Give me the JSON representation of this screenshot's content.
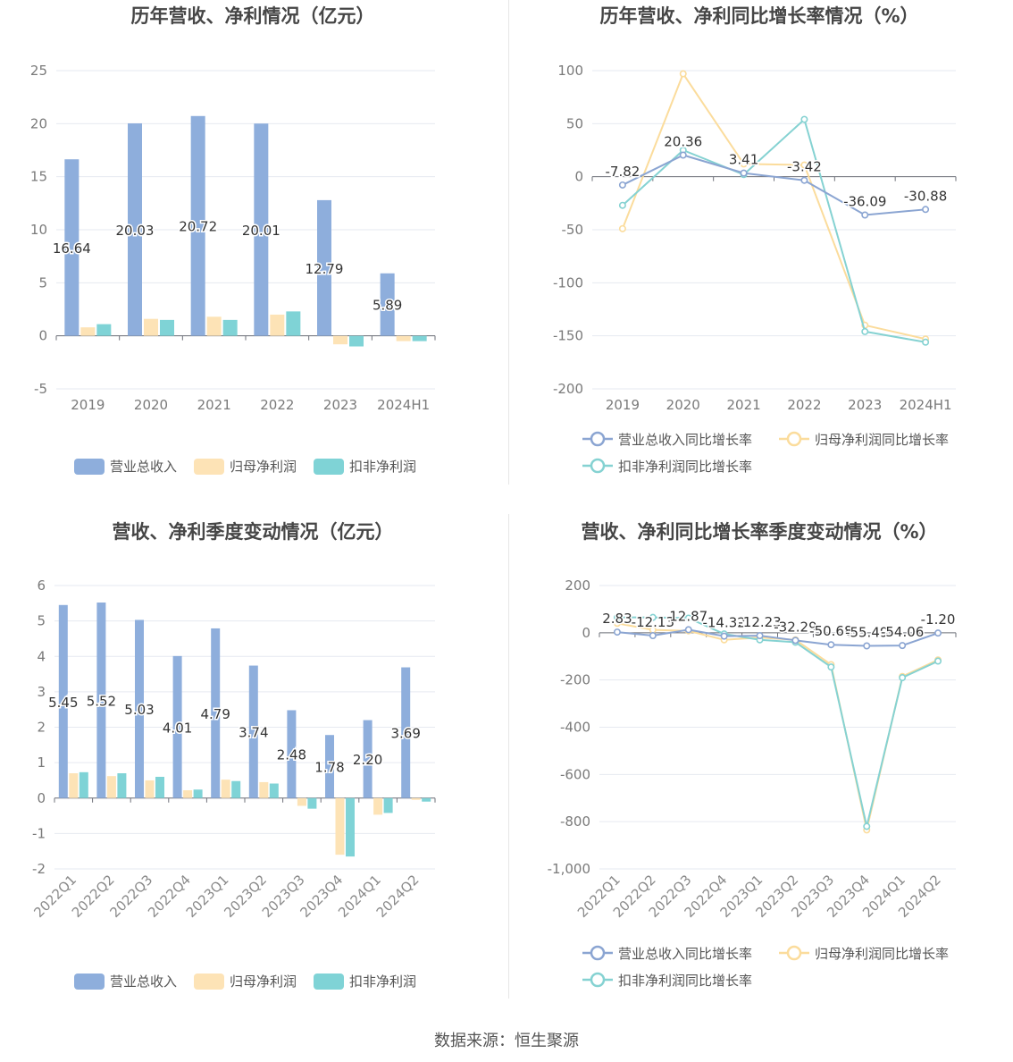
{
  "source_label": "数据来源：恒生聚源",
  "colors": {
    "revenue_bar": "#8eaedc",
    "net_profit_bar": "#fde3b6",
    "deducted_profit_bar": "#7fd3d6",
    "revenue_line": "#8ba5d2",
    "net_profit_line": "#fbdc9c",
    "deducted_profit_line": "#85d2d2"
  },
  "chart_data": [
    {
      "type": "bar",
      "title": "历年营收、净利情况（亿元）",
      "categories": [
        "2019",
        "2020",
        "2021",
        "2022",
        "2023",
        "2024H1"
      ],
      "ylim": [
        -5,
        25
      ],
      "yticks": [
        -5,
        0,
        5,
        10,
        15,
        20,
        25
      ],
      "series": [
        {
          "name": "营业总收入",
          "values": [
            16.64,
            20.03,
            20.72,
            20.01,
            12.79,
            5.89
          ],
          "labels": [
            "16.64",
            "20.03",
            "20.72",
            "20.01",
            "12.79",
            "5.89"
          ]
        },
        {
          "name": "归母净利润",
          "values": [
            0.8,
            1.6,
            1.8,
            2.0,
            -0.8,
            -0.5
          ]
        },
        {
          "name": "扣非净利润",
          "values": [
            1.1,
            1.5,
            1.5,
            2.3,
            -1.0,
            -0.5
          ]
        }
      ],
      "legend": [
        "营业总收入",
        "归母净利润",
        "扣非净利润"
      ]
    },
    {
      "type": "line",
      "title": "历年营收、净利同比增长率情况（%）",
      "categories": [
        "2019",
        "2020",
        "2021",
        "2022",
        "2023",
        "2024H1"
      ],
      "ylim": [
        -200,
        100
      ],
      "yticks": [
        -200,
        -150,
        -100,
        -50,
        0,
        50,
        100
      ],
      "series": [
        {
          "name": "营业总收入同比增长率",
          "values": [
            -7.82,
            20.36,
            3.41,
            -3.42,
            -36.09,
            -30.88
          ],
          "labels": [
            "-7.82",
            "20.36",
            "3.41",
            "-3.42",
            "-36.09",
            "-30.88"
          ]
        },
        {
          "name": "归母净利润同比增长率",
          "values": [
            -49,
            97,
            12,
            11,
            -140,
            -153
          ]
        },
        {
          "name": "扣非净利润同比增长率",
          "values": [
            -27,
            25,
            2,
            54,
            -146,
            -156
          ]
        }
      ],
      "legend": [
        "营业总收入同比增长率",
        "归母净利润同比增长率",
        "扣非净利润同比增长率"
      ]
    },
    {
      "type": "bar",
      "title": "营收、净利季度变动情况（亿元）",
      "categories": [
        "2022Q1",
        "2022Q2",
        "2022Q3",
        "2022Q4",
        "2023Q1",
        "2023Q2",
        "2023Q3",
        "2023Q4",
        "2024Q1",
        "2024Q2"
      ],
      "ylim": [
        -2,
        6
      ],
      "yticks": [
        -2,
        -1,
        0,
        1,
        2,
        3,
        4,
        5,
        6
      ],
      "series": [
        {
          "name": "营业总收入",
          "values": [
            5.45,
            5.52,
            5.03,
            4.01,
            4.79,
            3.74,
            2.48,
            1.78,
            2.2,
            3.69
          ],
          "labels": [
            "5.45",
            "5.52",
            "5.03",
            "4.01",
            "4.79",
            "3.74",
            "2.48",
            "1.78",
            "2.20",
            "3.69"
          ]
        },
        {
          "name": "归母净利润",
          "values": [
            0.7,
            0.62,
            0.5,
            0.22,
            0.52,
            0.45,
            -0.22,
            -1.6,
            -0.47,
            -0.05
          ]
        },
        {
          "name": "扣非净利润",
          "values": [
            0.73,
            0.7,
            0.6,
            0.24,
            0.48,
            0.41,
            -0.3,
            -1.65,
            -0.42,
            -0.1
          ]
        }
      ],
      "legend": [
        "营业总收入",
        "归母净利润",
        "扣非净利润"
      ]
    },
    {
      "type": "line",
      "title": "营收、净利同比增长率季度变动情况（%）",
      "categories": [
        "2022Q1",
        "2022Q2",
        "2022Q3",
        "2022Q4",
        "2023Q1",
        "2023Q2",
        "2023Q3",
        "2023Q4",
        "2024Q1",
        "2024Q2"
      ],
      "ylim": [
        -1000,
        200
      ],
      "yticks": [
        -1000,
        -800,
        -600,
        -400,
        -200,
        0,
        200
      ],
      "ytick_labels": [
        "-1,000",
        "-800",
        "-600",
        "-400",
        "-200",
        "0",
        "200"
      ],
      "series": [
        {
          "name": "营业总收入同比增长率",
          "values": [
            2.83,
            -12.13,
            12.87,
            -14.32,
            -12.23,
            -32.29,
            -50.68,
            -55.49,
            -54.06,
            -1.2
          ],
          "labels": [
            "2.83",
            "-12.13",
            "12.87",
            "-14.32",
            "-12.23",
            "-32.29",
            "-50.68",
            "-55.49",
            "-54.06",
            "-1.20"
          ]
        },
        {
          "name": "归母净利润同比增长率",
          "values": [
            40,
            12,
            8,
            -30,
            -20,
            -30,
            -135,
            -835,
            -185,
            -115
          ]
        },
        {
          "name": "扣非净利润同比增长率",
          "values": [
            65,
            65,
            62,
            -5,
            -30,
            -40,
            -145,
            -820,
            -190,
            -120
          ]
        }
      ],
      "legend": [
        "营业总收入同比增长率",
        "归母净利润同比增长率",
        "扣非净利润同比增长率"
      ]
    }
  ]
}
